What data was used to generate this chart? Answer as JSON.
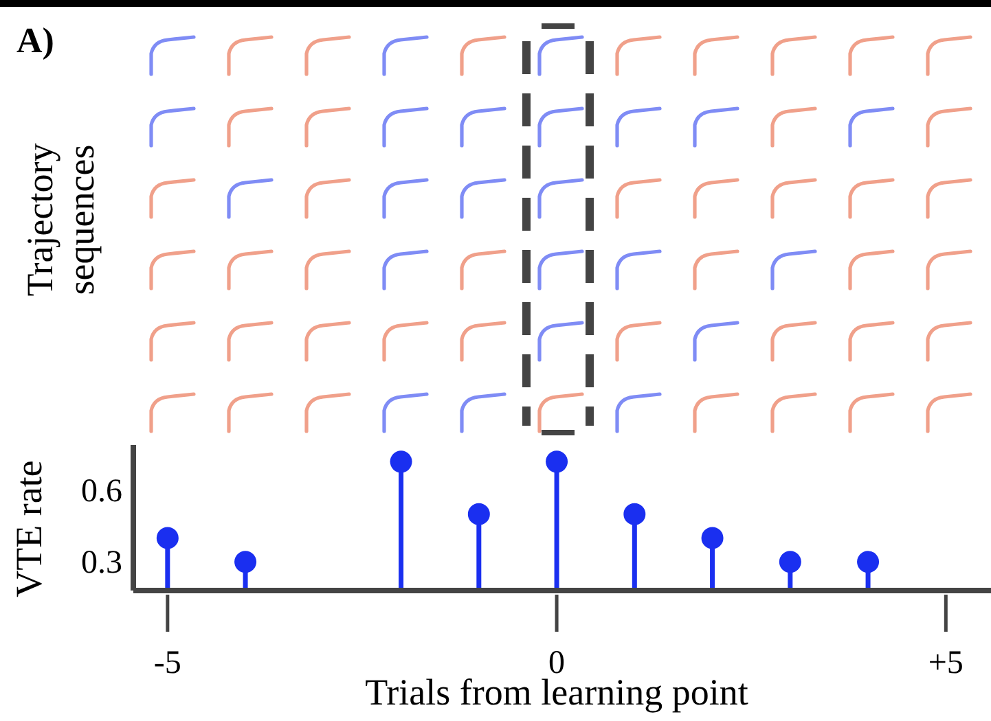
{
  "chart_data": {
    "type": "lollipop",
    "xlabel": "Trials from learning point",
    "ylabel": "VTE rate",
    "annotations": [
      "A)",
      "Trajectory sequences"
    ],
    "x": [
      -5,
      -4,
      -2,
      -1,
      0,
      1,
      2,
      3,
      4
    ],
    "values": [
      0.4,
      0.3,
      0.72,
      0.5,
      0.72,
      0.5,
      0.4,
      0.3,
      0.3
    ],
    "color": "#1a2ff0",
    "xlim": [
      -5.44,
      5.58
    ],
    "xticks": [
      -5,
      0,
      {
        "value": 5,
        "label": "+5"
      }
    ],
    "ylim": [
      0.18,
      0.79
    ],
    "yticks": [
      0.3,
      0.6
    ],
    "grid": false,
    "marker": "circle"
  }
}
